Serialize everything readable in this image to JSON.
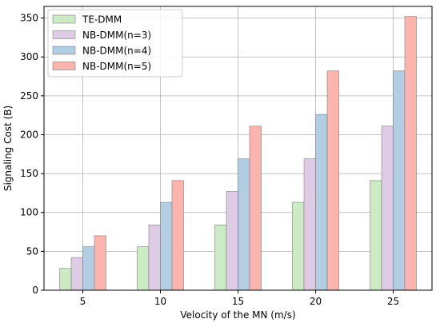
{
  "chart_data": {
    "type": "bar",
    "title": "",
    "xlabel": "Velocity of the MN (m/s)",
    "ylabel": "Signaling Cost (B)",
    "categories": [
      "5",
      "10",
      "15",
      "20",
      "25"
    ],
    "ylim": [
      0,
      365
    ],
    "yticks": [
      "0",
      "50",
      "100",
      "150",
      "200",
      "250",
      "300",
      "350"
    ],
    "grid": true,
    "legend_position": "top-left",
    "series": [
      {
        "name": "TE-DMM",
        "values": [
          28,
          56,
          84,
          113,
          141
        ],
        "color": "#ccebc5"
      },
      {
        "name": "NB-DMM(n=3)",
        "values": [
          42,
          84,
          127,
          169,
          211
        ],
        "color": "#decbe4"
      },
      {
        "name": "NB-DMM(n=4)",
        "values": [
          56,
          113,
          169,
          226,
          282
        ],
        "color": "#b3cde3"
      },
      {
        "name": "NB-DMM(n=5)",
        "values": [
          70,
          141,
          211,
          282,
          352
        ],
        "color": "#fbb4ae"
      }
    ]
  }
}
